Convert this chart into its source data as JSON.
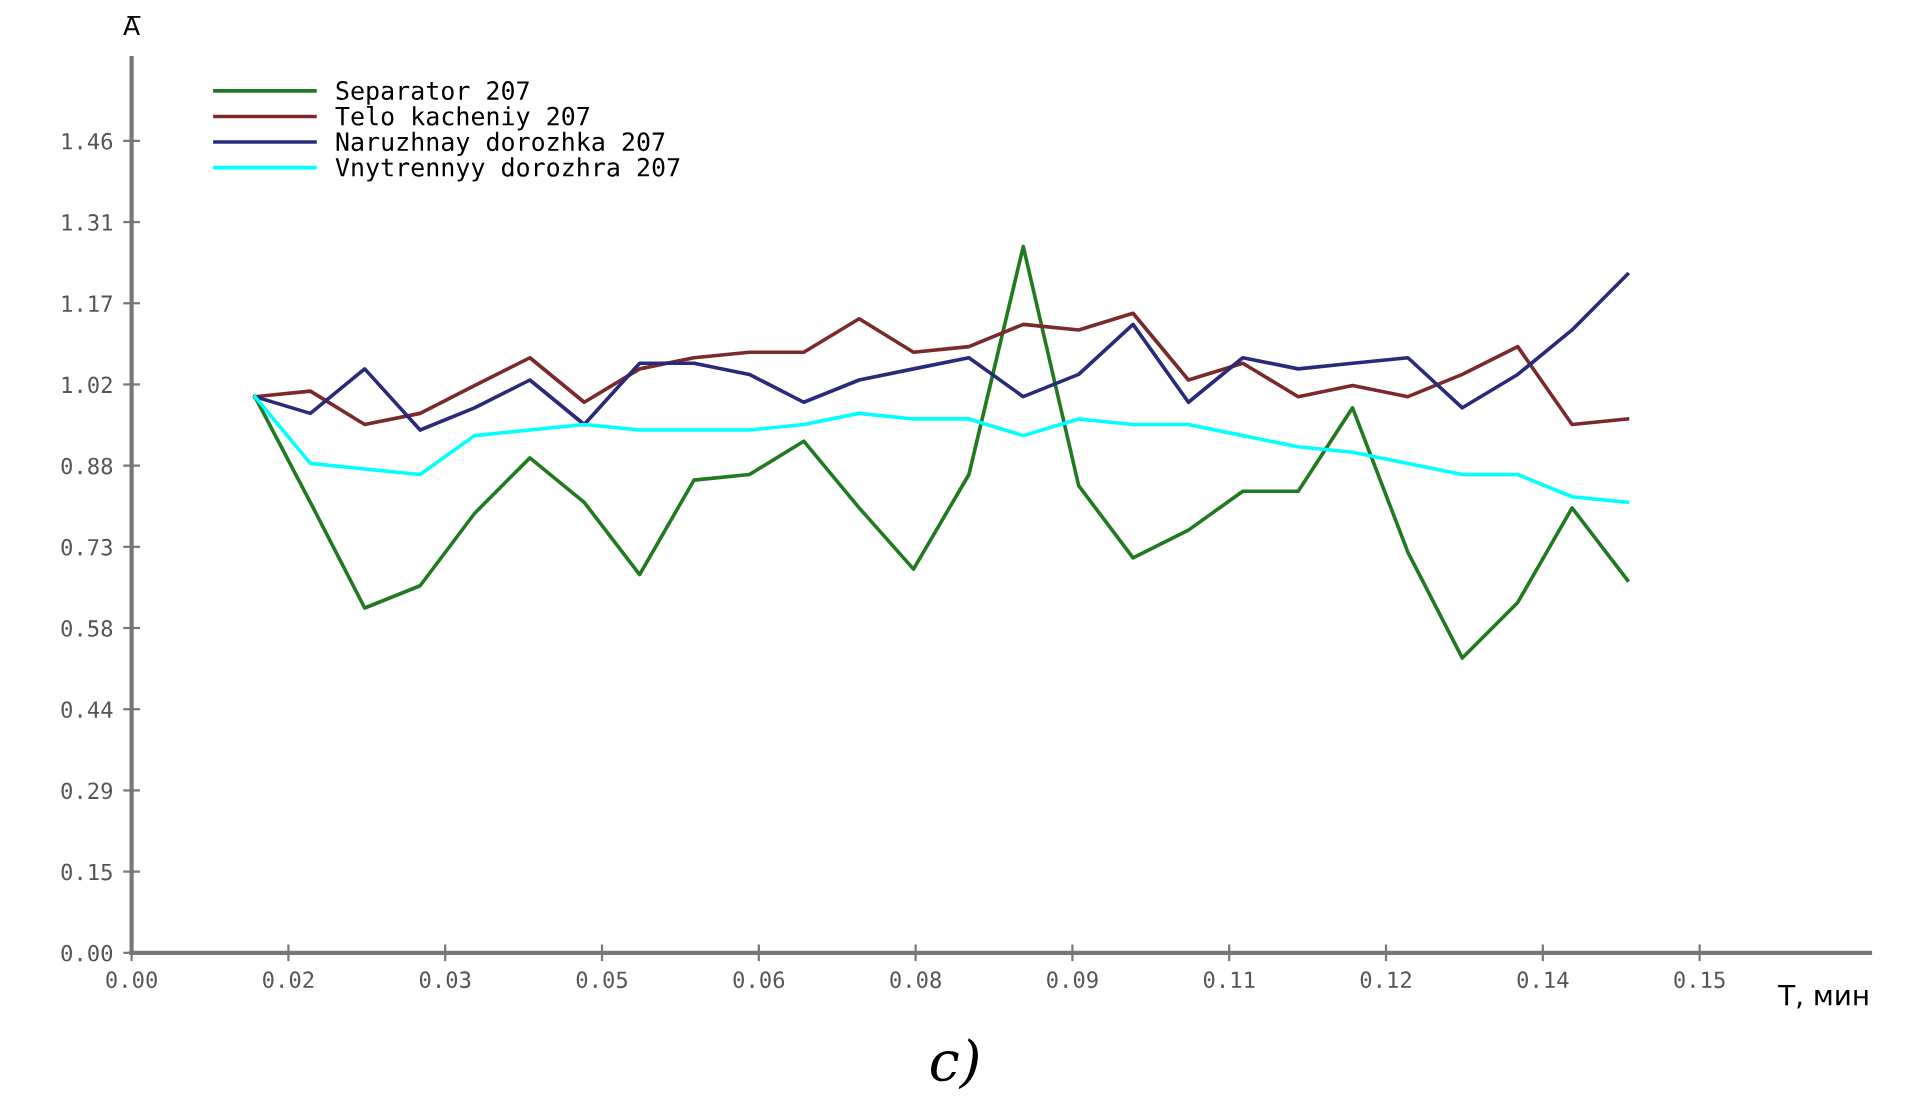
{
  "chart_data": {
    "type": "line",
    "xlabel": "T, мин",
    "ylabel": "A̅",
    "x": [
      0.0118,
      0.0171,
      0.0223,
      0.0276,
      0.0328,
      0.0381,
      0.0433,
      0.0486,
      0.0538,
      0.0591,
      0.0643,
      0.0696,
      0.0748,
      0.0801,
      0.0853,
      0.0906,
      0.0958,
      0.1011,
      0.1063,
      0.1116,
      0.1168,
      0.1221,
      0.1273,
      0.1326,
      0.1378,
      0.1431
    ],
    "series": [
      {
        "name": "Separator 207",
        "color": "#217a21",
        "values": [
          1.0,
          0.81,
          0.62,
          0.66,
          0.79,
          0.89,
          0.81,
          0.68,
          0.85,
          0.86,
          0.92,
          0.8,
          0.69,
          0.86,
          1.27,
          0.84,
          0.71,
          0.76,
          0.83,
          0.83,
          0.98,
          0.72,
          0.53,
          0.63,
          0.8,
          0.67
        ]
      },
      {
        "name": "Telo kacheniy 207",
        "color": "#7a2a2a",
        "values": [
          1.0,
          1.01,
          0.95,
          0.97,
          1.02,
          1.07,
          0.99,
          1.05,
          1.07,
          1.08,
          1.08,
          1.14,
          1.08,
          1.09,
          1.13,
          1.12,
          1.15,
          1.03,
          1.06,
          1.0,
          1.02,
          1.0,
          1.04,
          1.09,
          0.95,
          0.96
        ]
      },
      {
        "name": "Naruzhnay dorozhka 207",
        "color": "#2a2a7a",
        "values": [
          1.0,
          0.97,
          1.05,
          0.94,
          0.98,
          1.03,
          0.95,
          1.06,
          1.06,
          1.04,
          0.99,
          1.03,
          1.05,
          1.07,
          1.0,
          1.04,
          1.13,
          0.99,
          1.07,
          1.05,
          1.06,
          1.07,
          0.98,
          1.04,
          1.12,
          1.22
        ]
      },
      {
        "name": "Vnytrennyy dorozhra 207",
        "color": "#00ffff",
        "values": [
          1.0,
          0.88,
          0.87,
          0.86,
          0.93,
          0.94,
          0.95,
          0.94,
          0.94,
          0.94,
          0.95,
          0.97,
          0.96,
          0.96,
          0.93,
          0.96,
          0.95,
          0.95,
          0.93,
          0.91,
          0.9,
          0.88,
          0.86,
          0.86,
          0.82,
          0.81
        ]
      }
    ],
    "xlim": [
      0,
      0.1663
    ],
    "ylim": [
      0,
      1.609
    ],
    "xticks": [
      {
        "value": 0,
        "label": "0.00"
      },
      {
        "value": 0.015,
        "label": "0.02"
      },
      {
        "value": 0.03,
        "label": "0.03"
      },
      {
        "value": 0.045,
        "label": "0.05"
      },
      {
        "value": 0.06,
        "label": "0.06"
      },
      {
        "value": 0.075,
        "label": "0.08"
      },
      {
        "value": 0.09,
        "label": "0.09"
      },
      {
        "value": 0.105,
        "label": "0.11"
      },
      {
        "value": 0.12,
        "label": "0.12"
      },
      {
        "value": 0.135,
        "label": "0.14"
      },
      {
        "value": 0.15,
        "label": "0.15"
      }
    ],
    "yticks": [
      {
        "value": 0,
        "label": "0.00"
      },
      {
        "value": 0.146,
        "label": "0.15"
      },
      {
        "value": 0.292,
        "label": "0.29"
      },
      {
        "value": 0.438,
        "label": "0.44"
      },
      {
        "value": 0.584,
        "label": "0.58"
      },
      {
        "value": 0.73,
        "label": "0.73"
      },
      {
        "value": 0.876,
        "label": "0.88"
      },
      {
        "value": 1.022,
        "label": "1.02"
      },
      {
        "value": 1.168,
        "label": "1.17"
      },
      {
        "value": 1.314,
        "label": "1.31"
      },
      {
        "value": 1.46,
        "label": "1.46"
      }
    ],
    "grid": false,
    "legend": "top left",
    "marker": "none",
    "line_style": "solid",
    "annotations": [
      "c)"
    ]
  }
}
